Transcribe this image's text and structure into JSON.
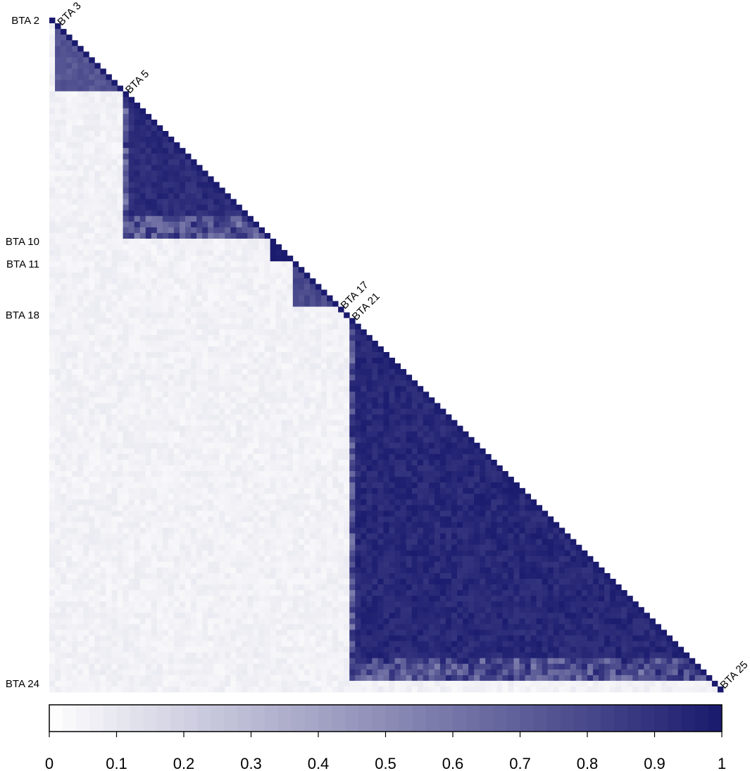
{
  "chart_data": {
    "type": "heatmap",
    "layout": "lower-triangular",
    "n_markers": 119,
    "colorscale": {
      "low": "#ffffff",
      "high": "#1a1a6e"
    },
    "value_range": [
      0,
      1
    ],
    "colorbar_ticks": [
      "0",
      "0.1",
      "0.2",
      "0.3",
      "0.4",
      "0.5",
      "0.6",
      "0.7",
      "0.8",
      "0.9",
      "1"
    ],
    "chromosome_labels": [
      {
        "text": "BTA 2",
        "start": 0,
        "end": 0,
        "side": "left"
      },
      {
        "text": "BTA 3",
        "start": 1,
        "end": 12,
        "side": "diagonal"
      },
      {
        "text": "BTA 5",
        "start": 13,
        "end": 38,
        "side": "diagonal"
      },
      {
        "text": "BTA 10",
        "start": 39,
        "end": 42,
        "side": "left"
      },
      {
        "text": "BTA 11",
        "start": 43,
        "end": 50,
        "side": "left"
      },
      {
        "text": "BTA 17",
        "start": 51,
        "end": 51,
        "side": "diagonal"
      },
      {
        "text": "BTA 18",
        "start": 52,
        "end": 52,
        "side": "left"
      },
      {
        "text": "BTA 21",
        "start": 53,
        "end": 116,
        "side": "diagonal"
      },
      {
        "text": "BTA 24",
        "start": 117,
        "end": 117,
        "side": "left"
      },
      {
        "text": "BTA 25",
        "start": 118,
        "end": 118,
        "side": "diagonal"
      }
    ],
    "ld_blocks": [
      {
        "chromosome": "BTA 3",
        "start": 1,
        "end": 12,
        "mean_r2": 0.75
      },
      {
        "chromosome": "BTA 5",
        "start": 13,
        "end": 38,
        "mean_r2": 0.93
      },
      {
        "chromosome": "BTA 10",
        "start": 39,
        "end": 42,
        "mean_r2": 1.0
      },
      {
        "chromosome": "BTA 11",
        "start": 43,
        "end": 50,
        "mean_r2": 0.8
      },
      {
        "chromosome": "BTA 21",
        "start": 53,
        "end": 116,
        "mean_r2": 0.95
      }
    ]
  }
}
